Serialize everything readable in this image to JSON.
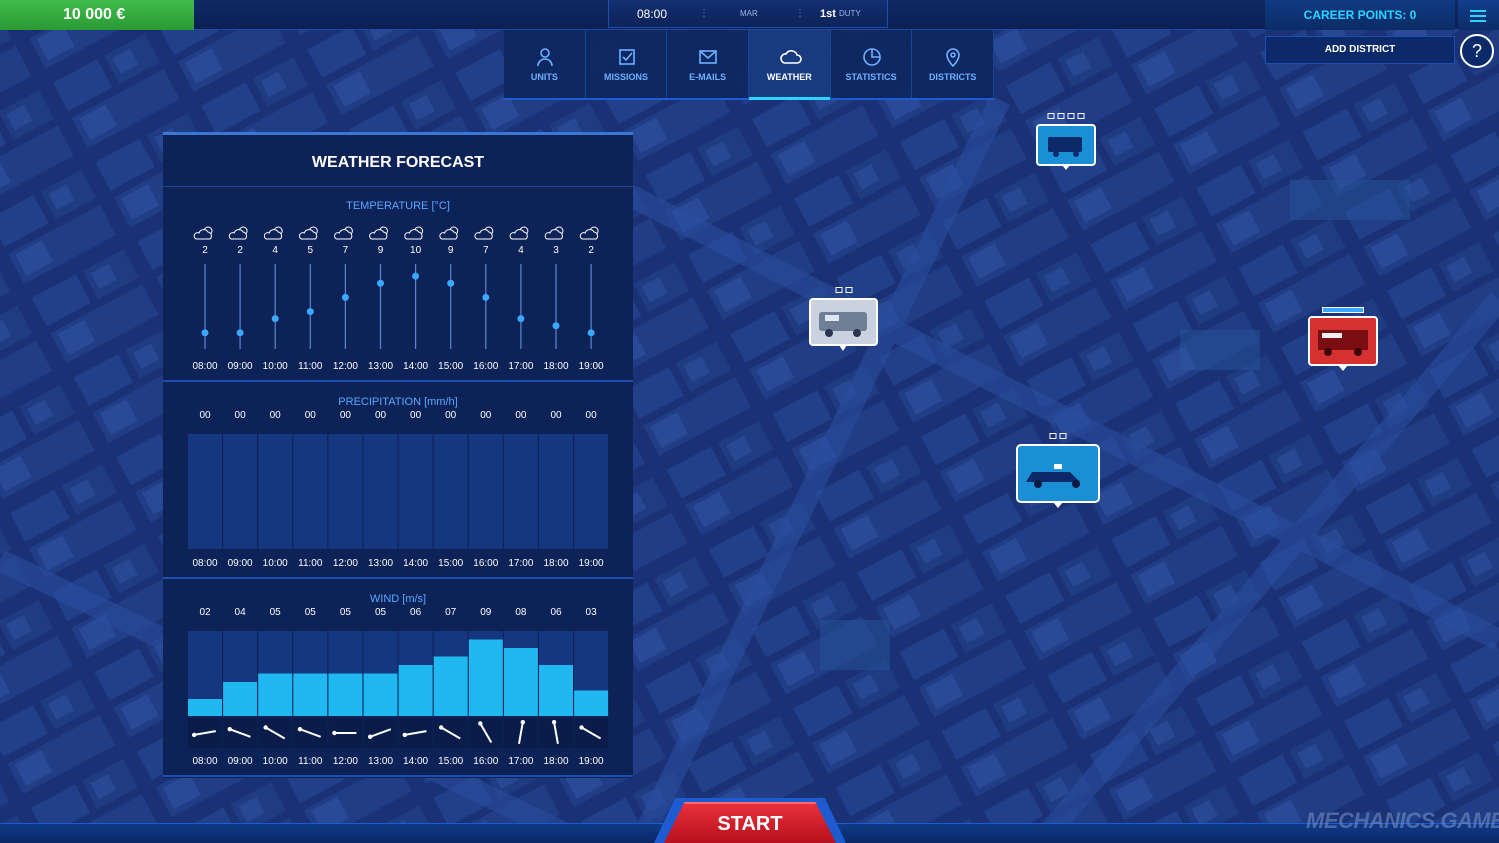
{
  "top_bar": {
    "money": "10 000 €",
    "time": "08:00",
    "weekday": "MAR",
    "duty_number": "1st",
    "duty_label": "DUTY",
    "career_points": "CAREER POINTS: 0",
    "add_district": "ADD DISTRICT",
    "help": "?"
  },
  "nav": {
    "tabs": [
      {
        "label": "UNITS",
        "icon": "person-icon"
      },
      {
        "label": "MISSIONS",
        "icon": "checkbox-icon"
      },
      {
        "label": "E-MAILS",
        "icon": "envelope-icon"
      },
      {
        "label": "WEATHER",
        "icon": "cloud-icon",
        "active": true
      },
      {
        "label": "STATISTICS",
        "icon": "pie-chart-icon"
      },
      {
        "label": "DISTRICTS",
        "icon": "location-pin-icon"
      }
    ]
  },
  "weather": {
    "title": "WEATHER FORECAST",
    "temperature_title": "TEMPERATURE [°C]",
    "precipitation_title": "PRECIPITATION [mm/h]",
    "wind_title": "WIND [m/s]"
  },
  "chart_data": [
    {
      "type": "line",
      "title": "TEMPERATURE [°C]",
      "categories": [
        "08:00",
        "09:00",
        "10:00",
        "11:00",
        "12:00",
        "13:00",
        "14:00",
        "15:00",
        "16:00",
        "17:00",
        "18:00",
        "19:00"
      ],
      "values": [
        2,
        2,
        4,
        5,
        7,
        9,
        10,
        9,
        7,
        4,
        3,
        2
      ],
      "value_labels": [
        "2",
        "2",
        "4",
        "5",
        "7",
        "9",
        "10",
        "9",
        "7",
        "4",
        "3",
        "2"
      ],
      "icons": [
        "partly-cloudy-icon",
        "partly-cloudy-icon",
        "partly-cloudy-icon",
        "partly-cloudy-icon",
        "partly-cloudy-icon",
        "partly-cloudy-icon",
        "partly-cloudy-icon",
        "partly-cloudy-icon",
        "partly-cloudy-icon",
        "partly-cloudy-icon",
        "partly-cloudy-icon",
        "partly-cloudy-icon"
      ]
    },
    {
      "type": "bar",
      "title": "PRECIPITATION [mm/h]",
      "categories": [
        "08:00",
        "09:00",
        "10:00",
        "11:00",
        "12:00",
        "13:00",
        "14:00",
        "15:00",
        "16:00",
        "17:00",
        "18:00",
        "19:00"
      ],
      "values": [
        0,
        0,
        0,
        0,
        0,
        0,
        0,
        0,
        0,
        0,
        0,
        0
      ],
      "value_labels": [
        "00",
        "00",
        "00",
        "00",
        "00",
        "00",
        "00",
        "00",
        "00",
        "00",
        "00",
        "00"
      ]
    },
    {
      "type": "bar",
      "title": "WIND [m/s]",
      "categories": [
        "08:00",
        "09:00",
        "10:00",
        "11:00",
        "12:00",
        "13:00",
        "14:00",
        "15:00",
        "16:00",
        "17:00",
        "18:00",
        "19:00"
      ],
      "values": [
        2,
        4,
        5,
        5,
        5,
        5,
        6,
        7,
        9,
        8,
        6,
        3
      ],
      "value_labels": [
        "02",
        "04",
        "05",
        "05",
        "05",
        "05",
        "06",
        "07",
        "09",
        "08",
        "06",
        "03"
      ],
      "ylim": [
        0,
        10
      ],
      "direction_degrees": [
        190,
        160,
        150,
        160,
        180,
        200,
        190,
        150,
        120,
        80,
        100,
        150
      ]
    }
  ],
  "map": {
    "markers": [
      {
        "name": "marker-ambulance-van",
        "icon": "van-icon",
        "color": "#1a8fd6",
        "slots": 4
      },
      {
        "name": "marker-transport-van",
        "icon": "van-icon",
        "color": "#c9d2de",
        "slots": 2
      },
      {
        "name": "marker-police-car",
        "icon": "police-car-icon",
        "color": "#1a8fd6",
        "slots": 2
      },
      {
        "name": "marker-fire-truck",
        "icon": "fire-truck-icon",
        "color": "#d63030",
        "slots": 1
      }
    ]
  },
  "start_label": "START",
  "watermark": "MECHANICS.GAMES"
}
